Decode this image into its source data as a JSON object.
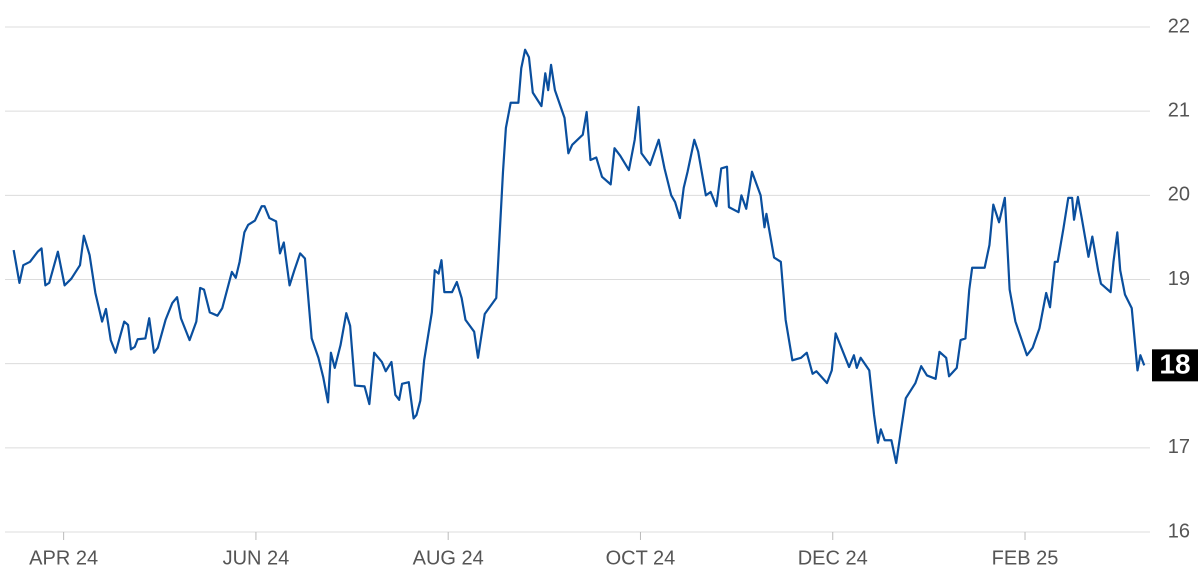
{
  "chart_data": {
    "type": "line",
    "x": [
      -0.52,
      -0.46,
      -0.42,
      -0.35,
      -0.27,
      -0.23,
      -0.19,
      -0.15,
      -0.06,
      0.01,
      0.08,
      0.17,
      0.21,
      0.27,
      0.33,
      0.4,
      0.44,
      0.49,
      0.54,
      0.63,
      0.67,
      0.7,
      0.74,
      0.77,
      0.85,
      0.89,
      0.94,
      0.98,
      1.06,
      1.13,
      1.18,
      1.22,
      1.31,
      1.38,
      1.42,
      1.46,
      1.52,
      1.6,
      1.65,
      1.75,
      1.79,
      1.83,
      1.88,
      1.92,
      1.99,
      2.06,
      2.09,
      2.14,
      2.21,
      2.25,
      2.29,
      2.35,
      2.4,
      2.46,
      2.51,
      2.58,
      2.65,
      2.7,
      2.75,
      2.78,
      2.82,
      2.88,
      2.94,
      2.98,
      3.03,
      3.13,
      3.18,
      3.23,
      3.31,
      3.35,
      3.41,
      3.45,
      3.49,
      3.52,
      3.59,
      3.64,
      3.67,
      3.71,
      3.75,
      3.83,
      3.86,
      3.9,
      3.93,
      3.96,
      4.04,
      4.09,
      4.14,
      4.18,
      4.27,
      4.31,
      4.38,
      4.5,
      4.57,
      4.6,
      4.65,
      4.73,
      4.76,
      4.8,
      4.84,
      4.88,
      4.97,
      5.01,
      5.04,
      5.07,
      5.11,
      5.21,
      5.25,
      5.29,
      5.4,
      5.44,
      5.48,
      5.54,
      5.6,
      5.69,
      5.73,
      5.79,
      5.88,
      5.94,
      5.98,
      6.01,
      6.1,
      6.19,
      6.25,
      6.32,
      6.36,
      6.41,
      6.45,
      6.49,
      6.56,
      6.6,
      6.68,
      6.73,
      6.79,
      6.84,
      6.9,
      6.92,
      7.02,
      7.05,
      7.1,
      7.16,
      7.25,
      7.29,
      7.31,
      7.39,
      7.46,
      7.51,
      7.58,
      7.67,
      7.73,
      7.79,
      7.83,
      7.94,
      7.99,
      8.03,
      8.17,
      8.22,
      8.25,
      8.29,
      8.38,
      8.43,
      8.47,
      8.5,
      8.54,
      8.61,
      8.66,
      8.71,
      8.76,
      8.86,
      8.92,
      8.98,
      9.07,
      9.11,
      9.18,
      9.21,
      9.29,
      9.33,
      9.38,
      9.42,
      9.45,
      9.58,
      9.63,
      9.67,
      9.73,
      9.79,
      9.84,
      9.9,
      10.02,
      10.08,
      10.15,
      10.22,
      10.26,
      10.31,
      10.34,
      10.4,
      10.45,
      10.49,
      10.51,
      10.55,
      10.59,
      10.66,
      10.7,
      10.76,
      10.79,
      10.89,
      10.92,
      10.96,
      10.99,
      11.04,
      11.11,
      11.17,
      11.2,
      11.24
    ],
    "series": [
      {
        "color": "#0a4f9e",
        "values": [
          19.35,
          18.96,
          19.17,
          19.21,
          19.33,
          19.37,
          18.93,
          18.96,
          19.33,
          18.93,
          19.01,
          19.17,
          19.52,
          19.29,
          18.84,
          18.5,
          18.65,
          18.28,
          18.13,
          18.5,
          18.46,
          18.17,
          18.2,
          18.29,
          18.3,
          18.54,
          18.13,
          18.19,
          18.52,
          18.72,
          18.79,
          18.54,
          18.28,
          18.5,
          18.9,
          18.88,
          18.61,
          18.57,
          18.66,
          19.09,
          19.02,
          19.21,
          19.56,
          19.65,
          19.7,
          19.87,
          19.87,
          19.73,
          19.69,
          19.31,
          19.44,
          18.93,
          19.11,
          19.31,
          19.25,
          18.3,
          18.07,
          17.84,
          17.54,
          18.13,
          17.95,
          18.22,
          18.6,
          18.45,
          17.74,
          17.73,
          17.52,
          18.13,
          18.02,
          17.91,
          18.02,
          17.63,
          17.57,
          17.76,
          17.78,
          17.35,
          17.39,
          17.56,
          18.04,
          18.61,
          19.11,
          19.07,
          19.23,
          18.85,
          18.85,
          18.97,
          18.78,
          18.52,
          18.38,
          18.07,
          18.59,
          18.78,
          20.28,
          20.8,
          21.1,
          21.1,
          21.51,
          21.73,
          21.64,
          21.22,
          21.06,
          21.45,
          21.25,
          21.55,
          21.25,
          20.92,
          20.5,
          20.6,
          20.72,
          20.99,
          20.42,
          20.45,
          20.22,
          20.13,
          20.56,
          20.47,
          20.3,
          20.66,
          21.05,
          20.5,
          20.36,
          20.66,
          20.32,
          20.0,
          19.92,
          19.73,
          20.09,
          20.28,
          20.66,
          20.52,
          20.0,
          20.04,
          19.87,
          20.32,
          20.34,
          19.86,
          19.8,
          20.0,
          19.84,
          20.28,
          20.0,
          19.62,
          19.78,
          19.26,
          19.21,
          18.52,
          18.04,
          18.07,
          18.13,
          17.88,
          17.91,
          17.77,
          17.92,
          18.36,
          17.96,
          18.1,
          17.95,
          18.07,
          17.92,
          17.39,
          17.06,
          17.22,
          17.09,
          17.09,
          16.82,
          17.21,
          17.59,
          17.77,
          17.97,
          17.86,
          17.82,
          18.14,
          18.07,
          17.85,
          17.95,
          18.28,
          18.3,
          18.88,
          19.14,
          19.14,
          19.41,
          19.89,
          19.68,
          19.97,
          18.88,
          18.5,
          18.1,
          18.19,
          18.42,
          18.84,
          18.67,
          19.21,
          19.21,
          19.61,
          19.97,
          19.97,
          19.71,
          19.98,
          19.73,
          19.27,
          19.51,
          19.11,
          18.95,
          18.85,
          19.21,
          19.56,
          19.11,
          18.82,
          18.66,
          17.92,
          18.1,
          17.98
        ]
      }
    ],
    "current_value_label": "18",
    "xlim": [
      -0.61,
      11.3
    ],
    "xticks": [
      {
        "value": 0,
        "label": "APR 24"
      },
      {
        "value": 2,
        "label": "JUN 24"
      },
      {
        "value": 4,
        "label": "AUG 24"
      },
      {
        "value": 6,
        "label": "OCT 24"
      },
      {
        "value": 8,
        "label": "DEC 24"
      },
      {
        "value": 10,
        "label": "FEB 25"
      }
    ],
    "ylim": [
      16,
      22
    ],
    "yticks": [
      16,
      17,
      18,
      19,
      20,
      21,
      22
    ],
    "grid": true
  }
}
